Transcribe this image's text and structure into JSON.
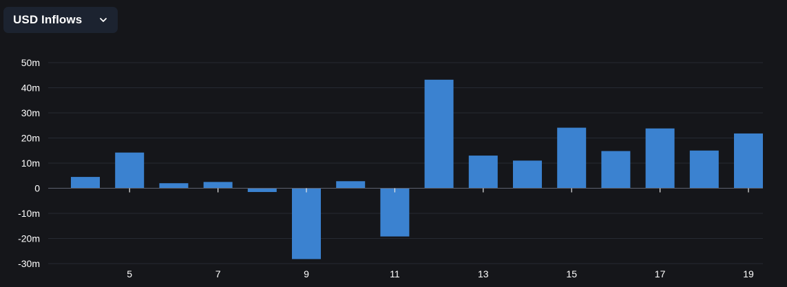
{
  "selector": {
    "label": "USD Inflows",
    "icon": "chevron-down-icon"
  },
  "chart_data": {
    "type": "bar",
    "x": [
      4,
      5,
      6,
      7,
      8,
      9,
      10,
      11,
      12,
      13,
      14,
      15,
      16,
      17,
      18,
      19
    ],
    "values": [
      4.5,
      14.2,
      2.0,
      2.5,
      -1.5,
      -28.2,
      2.8,
      -19.2,
      43.2,
      13.0,
      11.0,
      24.1,
      14.8,
      23.8,
      15.0,
      21.8
    ],
    "xticks": [
      5,
      7,
      9,
      11,
      13,
      15,
      17,
      19
    ],
    "yticks": [
      {
        "value": 50,
        "label": "50m"
      },
      {
        "value": 40,
        "label": "40m"
      },
      {
        "value": 30,
        "label": "30m"
      },
      {
        "value": 20,
        "label": "20m"
      },
      {
        "value": 10,
        "label": "10m"
      },
      {
        "value": 0,
        "label": "0"
      },
      {
        "value": -10,
        "label": "-10m"
      },
      {
        "value": -20,
        "label": "-20m"
      },
      {
        "value": -30,
        "label": "-30m"
      }
    ],
    "ylim": [
      -30,
      50
    ],
    "grid": true,
    "colors": {
      "bar": "#3b82d0",
      "grid": "#262a33",
      "zero_line": "#5d6270",
      "tick_text": "#ffffff"
    }
  }
}
